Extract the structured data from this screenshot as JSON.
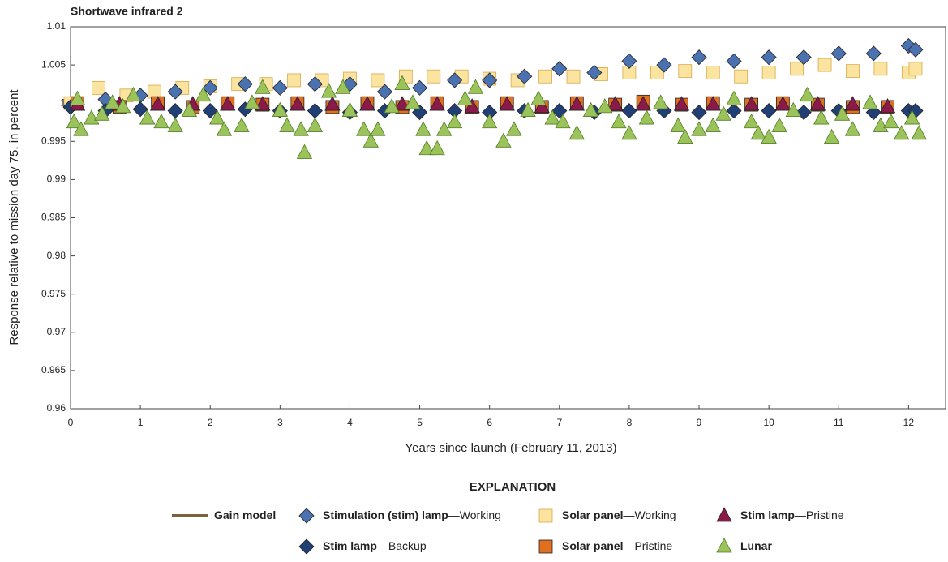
{
  "chart_data": {
    "type": "scatter",
    "title": "Shortwave infrared 2",
    "xlabel": "Years since launch (February 11, 2013)",
    "ylabel": "Response relative to mission day 75, in percent",
    "legend_title": "EXPLANATION",
    "xlim": [
      0,
      12.53
    ],
    "ylim": [
      0.96,
      1.01
    ],
    "xticks": [
      0,
      1,
      2,
      3,
      4,
      5,
      6,
      7,
      8,
      9,
      10,
      11,
      12
    ],
    "yticks": [
      0.96,
      0.965,
      0.97,
      0.975,
      0.98,
      0.985,
      0.99,
      0.995,
      1,
      1.005,
      1.01
    ],
    "grid": false,
    "series": [
      {
        "name": "Gain model",
        "color": "#7a6440",
        "marker": "line",
        "x": [],
        "values": []
      },
      {
        "name": "Solar panel—Working",
        "color": "#fbe3a0",
        "marker": "square",
        "x": [
          0,
          0.4,
          0.8,
          1.2,
          1.6,
          2.0,
          2.4,
          2.8,
          3.2,
          3.6,
          4.0,
          4.4,
          4.8,
          5.2,
          5.6,
          6.0,
          6.4,
          6.8,
          7.2,
          7.6,
          8.0,
          8.4,
          8.8,
          9.2,
          9.6,
          10.0,
          10.4,
          10.8,
          11.2,
          11.6,
          12.0,
          12.1
        ],
        "values": [
          1.0,
          1.002,
          1.001,
          1.0015,
          1.002,
          1.0022,
          1.0025,
          1.0025,
          1.003,
          1.003,
          1.0032,
          1.003,
          1.0035,
          1.0035,
          1.0035,
          1.0032,
          1.003,
          1.0035,
          1.0035,
          1.0038,
          1.004,
          1.004,
          1.0042,
          1.004,
          1.0035,
          1.004,
          1.0045,
          1.005,
          1.0042,
          1.0045,
          1.004,
          1.0045
        ]
      },
      {
        "name": "Stimulation (stim) lamp—Working",
        "color": "#4a72b0",
        "marker": "diamond",
        "x": [
          0,
          0.5,
          1,
          1.5,
          2,
          2.5,
          3,
          3.5,
          4,
          4.5,
          5,
          5.5,
          6,
          6.5,
          7,
          7.5,
          8,
          8.5,
          9,
          9.5,
          10,
          10.5,
          11,
          11.5,
          12,
          12.1
        ],
        "values": [
          0.9995,
          1.0005,
          1.001,
          1.0015,
          1.002,
          1.0025,
          1.002,
          1.0025,
          1.0025,
          1.0015,
          1.002,
          1.003,
          1.003,
          1.0035,
          1.0045,
          1.004,
          1.0055,
          1.005,
          1.006,
          1.0055,
          1.006,
          1.006,
          1.0065,
          1.0065,
          1.0075,
          1.007
        ]
      },
      {
        "name": "Stim lamp—Backup",
        "color": "#1f3f75",
        "marker": "diamond",
        "x": [
          0,
          0.5,
          1,
          1.5,
          2,
          2.5,
          3,
          3.5,
          4,
          4.5,
          5,
          5.5,
          6,
          6.5,
          7,
          7.5,
          8,
          8.5,
          9,
          9.5,
          10,
          10.5,
          11,
          11.5,
          12,
          12.1
        ],
        "values": [
          0.9995,
          0.999,
          0.9992,
          0.999,
          0.999,
          0.9992,
          0.999,
          0.999,
          0.9988,
          0.999,
          0.9988,
          0.999,
          0.9988,
          0.999,
          0.999,
          0.9988,
          0.999,
          0.999,
          0.9988,
          0.999,
          0.999,
          0.9988,
          0.999,
          0.9988,
          0.999,
          0.999
        ]
      },
      {
        "name": "Solar panel—Pristine",
        "color": "#e07020",
        "marker": "square",
        "x": [
          0.1,
          0.7,
          1.25,
          1.75,
          2.25,
          2.75,
          3.25,
          3.75,
          4.25,
          4.75,
          5.25,
          5.75,
          6.25,
          6.75,
          7.25,
          7.8,
          8.2,
          8.75,
          9.2,
          9.75,
          10.2,
          10.7,
          11.2,
          11.7
        ],
        "values": [
          1.0,
          0.9995,
          1.0,
          0.9995,
          1.0,
          0.9998,
          1.0,
          0.9995,
          1.0,
          0.9995,
          1.0,
          0.9995,
          1.0,
          0.9995,
          1.0,
          0.9998,
          1.0002,
          0.9998,
          1.0,
          0.9998,
          1.0,
          0.9998,
          0.9995,
          0.9995
        ]
      },
      {
        "name": "Stim lamp—Pristine",
        "color": "#8b1a4a",
        "marker": "triangle",
        "x": [
          0.1,
          0.7,
          1.25,
          1.75,
          2.25,
          2.75,
          3.25,
          3.75,
          4.25,
          4.75,
          5.25,
          5.75,
          6.25,
          6.75,
          7.25,
          7.8,
          8.2,
          8.75,
          9.2,
          9.75,
          10.2,
          10.7,
          11.2,
          11.7
        ],
        "values": [
          0.9998,
          0.9998,
          0.9998,
          0.9998,
          0.9998,
          0.9998,
          0.9998,
          0.9998,
          0.9998,
          0.9998,
          0.9998,
          0.9995,
          0.9998,
          0.9995,
          0.9998,
          0.9998,
          0.9998,
          0.9998,
          0.9998,
          0.9998,
          0.9998,
          0.9998,
          0.9998,
          0.9995
        ]
      },
      {
        "name": "Lunar",
        "color": "#9bc35a",
        "marker": "triangle",
        "x": [
          0.05,
          0.1,
          0.15,
          0.3,
          0.45,
          0.6,
          0.75,
          0.9,
          1.1,
          1.3,
          1.5,
          1.7,
          1.9,
          2.1,
          2.2,
          2.45,
          2.6,
          2.75,
          3.0,
          3.1,
          3.3,
          3.35,
          3.5,
          3.7,
          3.9,
          4.0,
          4.2,
          4.3,
          4.4,
          4.6,
          4.75,
          4.9,
          5.05,
          5.1,
          5.25,
          5.35,
          5.5,
          5.65,
          5.8,
          6.0,
          6.2,
          6.35,
          6.55,
          6.7,
          6.9,
          7.05,
          7.25,
          7.45,
          7.65,
          7.85,
          8.0,
          8.25,
          8.45,
          8.7,
          8.8,
          9.0,
          9.2,
          9.35,
          9.5,
          9.75,
          9.85,
          10.0,
          10.15,
          10.35,
          10.55,
          10.75,
          10.9,
          11.05,
          11.2,
          11.45,
          11.6,
          11.75,
          11.9,
          12.05,
          12.15
        ],
        "values": [
          0.9975,
          1.0005,
          0.9965,
          0.998,
          0.9985,
          1.0,
          0.9995,
          1.001,
          0.998,
          0.9975,
          0.997,
          0.999,
          1.001,
          0.998,
          0.9965,
          0.997,
          1.0,
          1.002,
          0.999,
          0.997,
          0.9965,
          0.9935,
          0.997,
          1.0015,
          1.002,
          0.999,
          0.9965,
          0.995,
          0.9965,
          0.9995,
          1.0025,
          1.0,
          0.9965,
          0.994,
          0.994,
          0.9965,
          0.9975,
          1.0005,
          1.002,
          0.9975,
          0.995,
          0.9965,
          0.999,
          1.0005,
          0.998,
          0.9975,
          0.996,
          0.999,
          0.9995,
          0.9975,
          0.996,
          0.998,
          1.0,
          0.997,
          0.9955,
          0.9965,
          0.997,
          0.9985,
          1.0005,
          0.9975,
          0.996,
          0.9955,
          0.997,
          0.999,
          1.001,
          0.998,
          0.9955,
          0.9985,
          0.9965,
          1.0,
          0.997,
          0.9975,
          0.996,
          0.998,
          0.996
        ]
      }
    ]
  }
}
